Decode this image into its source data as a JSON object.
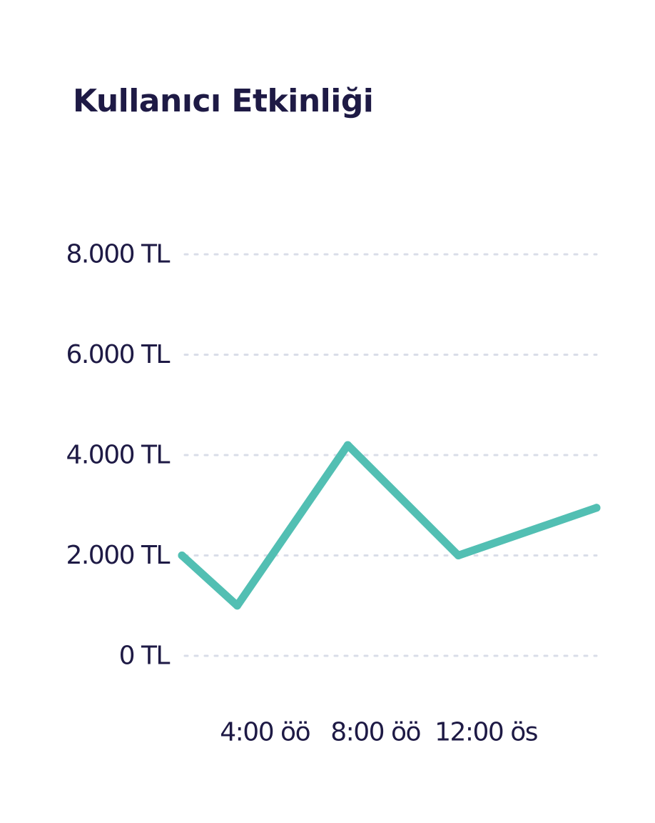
{
  "chart_data": {
    "type": "line",
    "title": "Kullanıcı Etkinliği",
    "xlabel": "",
    "ylabel": "",
    "ylim": [
      0,
      8000
    ],
    "y_ticks": [
      {
        "value": 0,
        "label": "0 TL"
      },
      {
        "value": 2000,
        "label": "2.000 TL"
      },
      {
        "value": 4000,
        "label": "4.000 TL"
      },
      {
        "value": 6000,
        "label": "6.000 TL"
      },
      {
        "value": 8000,
        "label": "8.000 TL"
      }
    ],
    "xlim": [
      1,
      16
    ],
    "x_ticks": [
      {
        "value": 4,
        "label": "4:00 öö"
      },
      {
        "value": 8,
        "label": "8:00 öö"
      },
      {
        "value": 12,
        "label": "12:00 ös"
      }
    ],
    "x": [
      1,
      3,
      7,
      11,
      16
    ],
    "series": [
      {
        "values": [
          2000,
          1000,
          4200,
          2000,
          2950
        ]
      }
    ],
    "grid": true,
    "legend": "none",
    "colors": {
      "line": "#52BFB3",
      "grid": "#D9DDE8",
      "text": "#1E1A45"
    }
  }
}
